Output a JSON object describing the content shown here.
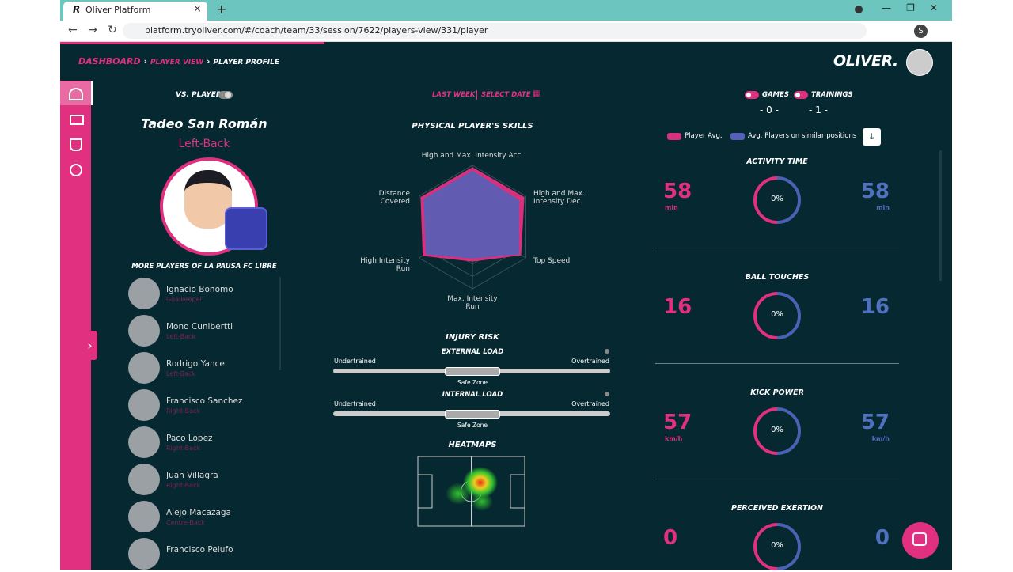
{
  "browser": {
    "tab_title": "Oliver Platform",
    "url": "platform.tryoliver.com/#/coach/team/33/session/7622/players-view/331/player",
    "profile": "S"
  },
  "breadcrumb": [
    "DASHBOARD",
    "PLAYER VIEW",
    "PLAYER PROFILE"
  ],
  "logo": "OLIVER.",
  "vs_player": "VS. PLAYER",
  "player": {
    "name": "Tadeo San Román",
    "position": "Left-Back"
  },
  "more_players": {
    "title": "MORE PLAYERS OF LA PAUSA FC LIBRE",
    "players": [
      {
        "name": "Ignacio Bonomo",
        "position": "Goalkeeper"
      },
      {
        "name": "Mono Cunibertti",
        "position": "Left-Back"
      },
      {
        "name": "Rodrigo Yance",
        "position": "Left-Back"
      },
      {
        "name": "Francisco Sanchez",
        "position": "Right-Back"
      },
      {
        "name": "Paco Lopez",
        "position": "Right-Back"
      },
      {
        "name": "Juan Villagra",
        "position": "Right-Back"
      },
      {
        "name": "Alejo Macazaga",
        "position": "Centre-Back"
      },
      {
        "name": "Francisco Pelufo"
      }
    ]
  },
  "period": {
    "last_week": "LAST WEEK",
    "select_date": "SELECT DATE"
  },
  "radar": {
    "type": "radar",
    "title": "PHYSICAL PLAYER'S SKILLS",
    "axes": [
      "High and Max. Intensity Acc.",
      "High and Max. Intensity Dec.",
      "Top Speed",
      "Max. Intensity Run",
      "High Intensity Run",
      "Distance Covered"
    ],
    "rlim": [
      0,
      100
    ],
    "series": [
      {
        "name": "Player Avg.",
        "color": "#d6307e",
        "values": [
          96,
          96,
          90,
          55,
          92,
          96
        ]
      },
      {
        "name": "Avg. Players on similar positions",
        "color": "#5560b8",
        "values": [
          90,
          86,
          86,
          50,
          86,
          90
        ]
      }
    ]
  },
  "injury_risk": {
    "title": "INJURY RISK",
    "loads": [
      {
        "label": "EXTERNAL LOAD",
        "low": "Undertrained",
        "high": "Overtrained",
        "zone": "Safe Zone"
      },
      {
        "label": "INTERNAL LOAD",
        "low": "Undertrained",
        "high": "Overtrained",
        "zone": "Safe Zone"
      }
    ]
  },
  "heatmaps": {
    "title": "HEATMAPS"
  },
  "filters": [
    {
      "label": "GAMES",
      "count": "- 0 -"
    },
    {
      "label": "TRAININGS",
      "count": "- 1 -"
    }
  ],
  "metrics": [
    {
      "title": "ACTIVITY TIME",
      "player": 58,
      "player_unit": "min",
      "percent": "0%",
      "average": 58,
      "average_unit": "min"
    },
    {
      "title": "BALL TOUCHES",
      "player": 16,
      "percent": "0%",
      "average": 16
    },
    {
      "title": "KICK POWER",
      "player": 57,
      "player_unit": "km/h",
      "percent": "0%",
      "average": 57,
      "average_unit": "km/h"
    },
    {
      "title": "PERCEIVED EXERTION",
      "player": 0,
      "percent": "0%",
      "average": 0
    }
  ]
}
